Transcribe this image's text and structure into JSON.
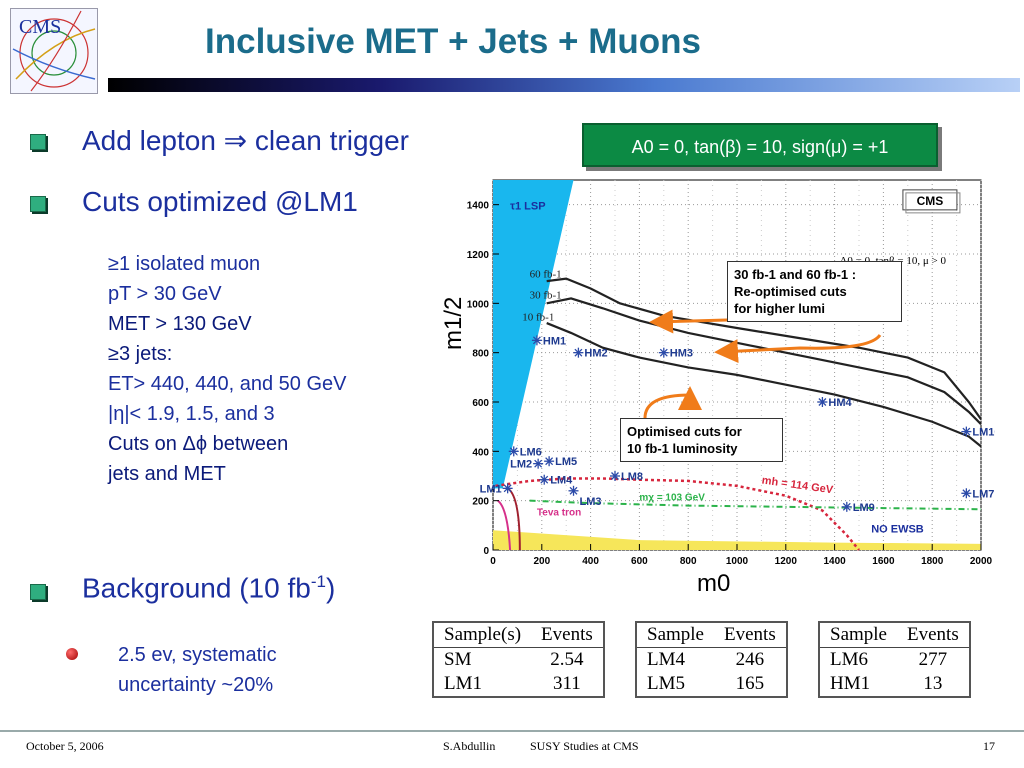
{
  "slide": {
    "title": "Inclusive MET + Jets + Muons",
    "logo_text": "CMS",
    "param_box_text": "A0 = 0, tan(β) = 10, sign(μ) = +1"
  },
  "bullets": [
    {
      "text": "Add lepton ⇒ clean trigger"
    },
    {
      "text": "Cuts optimized @LM1"
    },
    {
      "text": "Background (10 fb",
      "sup": "-1",
      "tail": ")"
    }
  ],
  "cuts": [
    "≥1 isolated muon",
    "pT > 30 GeV",
    "MET > 130 GeV",
    "≥3 jets:",
    "ET> 440, 440,  and 50 GeV",
    "|η|< 1.9, 1.5, and 3",
    "Cuts on Δϕ between",
    "jets and MET"
  ],
  "background_note": [
    "2.5 ev, systematic",
    "uncertainty ~20%"
  ],
  "annotations": {
    "reopt": [
      "30 fb-1 and 60 fb-1 :",
      "Re-optimised cuts",
      "for higher lumi"
    ],
    "opt10": [
      "Optimised cuts for",
      "10 fb-1 luminosity"
    ]
  },
  "tables": [
    {
      "headers": [
        "Sample(s)",
        "Events"
      ],
      "rows": [
        [
          "SM",
          "2.54"
        ],
        [
          "LM1",
          "311"
        ]
      ]
    },
    {
      "headers": [
        "Sample",
        "Events"
      ],
      "rows": [
        [
          "LM4",
          "246"
        ],
        [
          "LM5",
          "165"
        ]
      ]
    },
    {
      "headers": [
        "Sample",
        "Events"
      ],
      "rows": [
        [
          "LM6",
          "277"
        ],
        [
          "HM1",
          "13"
        ]
      ]
    }
  ],
  "footer": {
    "date": "October 5, 2006",
    "author": "S.Abdullin",
    "subject": "SUSY Studies at CMS",
    "page": "17"
  },
  "colors": {
    "title": "#1b6c8b",
    "bullet_text": "#1b2f9e",
    "param_box": "#0c8a44",
    "lsp_region": "#19b7ee",
    "point_marker": "#2b4aa8",
    "arrow": "#f07c1a",
    "mh_line": "#d7263d",
    "mchi_line": "#2bb34a",
    "tevatron": "#d6308a"
  },
  "chart_data": {
    "type": "line",
    "xlabel": "m0",
    "ylabel": "m1/2",
    "xlim": [
      0,
      2000
    ],
    "ylim": [
      0,
      1500
    ],
    "x_ticks": [
      0,
      200,
      400,
      600,
      800,
      1000,
      1200,
      1400,
      1600,
      1800,
      2000
    ],
    "y_ticks": [
      0,
      200,
      400,
      600,
      800,
      1000,
      1200,
      1400
    ],
    "tick_labels_x": [
      "0",
      "200",
      "400",
      "600",
      "800",
      "1000",
      "1200",
      "1400",
      "1600",
      "1800",
      "2000"
    ],
    "tick_labels_y": [
      "0",
      "200",
      "400",
      "600",
      "800",
      "1000",
      "1200",
      "1400"
    ],
    "cms_label": "CMS",
    "params_label": "A0 = 0, tanβ = 10, μ > 0",
    "region_labels": {
      "lsp": "τ1 LSP",
      "tevatron": "Teva tron",
      "no_ewsb": "NO EWSB"
    },
    "series": [
      {
        "name": "60 fb-1",
        "points": [
          [
            220,
            1090
          ],
          [
            300,
            1100
          ],
          [
            400,
            1060
          ],
          [
            520,
            1000
          ],
          [
            700,
            950
          ],
          [
            1000,
            900
          ],
          [
            1250,
            860
          ],
          [
            1500,
            820
          ],
          [
            1700,
            780
          ],
          [
            1850,
            720
          ],
          [
            1950,
            600
          ],
          [
            2000,
            530
          ]
        ]
      },
      {
        "name": "30 fb-1",
        "points": [
          [
            220,
            1000
          ],
          [
            320,
            1020
          ],
          [
            450,
            980
          ],
          [
            600,
            930
          ],
          [
            800,
            880
          ],
          [
            1050,
            830
          ],
          [
            1300,
            780
          ],
          [
            1500,
            740
          ],
          [
            1700,
            700
          ],
          [
            1850,
            640
          ],
          [
            1950,
            560
          ],
          [
            2000,
            510
          ]
        ]
      },
      {
        "name": "10 fb-1",
        "points": [
          [
            220,
            920
          ],
          [
            320,
            880
          ],
          [
            450,
            820
          ],
          [
            600,
            780
          ],
          [
            800,
            740
          ],
          [
            1000,
            710
          ],
          [
            1200,
            670
          ],
          [
            1400,
            630
          ],
          [
            1600,
            580
          ],
          [
            1800,
            520
          ],
          [
            1950,
            460
          ],
          [
            2000,
            420
          ]
        ]
      },
      {
        "name": "mh = 114 GeV",
        "points": [
          [
            10,
            260
          ],
          [
            150,
            280
          ],
          [
            300,
            290
          ],
          [
            450,
            290
          ],
          [
            600,
            285
          ],
          [
            800,
            280
          ],
          [
            1000,
            260
          ],
          [
            1200,
            220
          ],
          [
            1350,
            160
          ],
          [
            1450,
            60
          ],
          [
            1500,
            0
          ]
        ]
      },
      {
        "name": "mχ = 103 GeV",
        "points": [
          [
            150,
            200
          ],
          [
            400,
            190
          ],
          [
            800,
            180
          ],
          [
            1200,
            175
          ],
          [
            1600,
            170
          ],
          [
            2000,
            165
          ]
        ]
      }
    ],
    "points": [
      {
        "name": "LM1",
        "x": 60,
        "y": 250
      },
      {
        "name": "LM2",
        "x": 185,
        "y": 350
      },
      {
        "name": "LM3",
        "x": 330,
        "y": 240
      },
      {
        "name": "LM4",
        "x": 210,
        "y": 285
      },
      {
        "name": "LM5",
        "x": 230,
        "y": 360
      },
      {
        "name": "LM6",
        "x": 85,
        "y": 400
      },
      {
        "name": "LM7",
        "x": 1940,
        "y": 230
      },
      {
        "name": "LM8",
        "x": 500,
        "y": 300
      },
      {
        "name": "LM9",
        "x": 1450,
        "y": 175
      },
      {
        "name": "LM10",
        "x": 1940,
        "y": 480
      },
      {
        "name": "HM1",
        "x": 180,
        "y": 850
      },
      {
        "name": "HM2",
        "x": 350,
        "y": 800
      },
      {
        "name": "HM3",
        "x": 700,
        "y": 800
      },
      {
        "name": "HM4",
        "x": 1350,
        "y": 600
      }
    ],
    "curve_labels": [
      "60 fb-1",
      "30 fb-1",
      "10 fb-1"
    ]
  }
}
